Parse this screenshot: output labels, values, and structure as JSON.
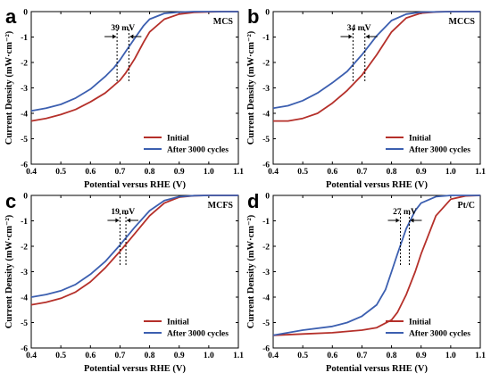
{
  "legend": {
    "initial": "Initial",
    "after": "After 3000 cycles"
  },
  "colors": {
    "initial": "#b5302a",
    "after": "#3c5fb0"
  },
  "chart_data": [
    {
      "type": "line",
      "panel": "a",
      "label": "MCS",
      "xlabel": "Potential versus RHE (V)",
      "ylabel": "Current Density (mW·cm⁻²)",
      "xlim": [
        0.4,
        1.1
      ],
      "ylim": [
        -6,
        0
      ],
      "xticks": [
        "0.4",
        "0.5",
        "0.6",
        "0.7",
        "0.8",
        "0.9",
        "1.0",
        "1.1"
      ],
      "yticks": [
        "0",
        "-1",
        "-2",
        "-3",
        "-4",
        "-5",
        "-6"
      ],
      "annotation": {
        "text": "39 mV",
        "x1": 0.69,
        "x2": 0.73
      },
      "series": [
        {
          "name": "Initial",
          "x": [
            0.4,
            0.45,
            0.5,
            0.55,
            0.6,
            0.65,
            0.7,
            0.72,
            0.75,
            0.78,
            0.8,
            0.85,
            0.9,
            0.95,
            1.0,
            1.05,
            1.1
          ],
          "y": [
            -4.3,
            -4.2,
            -4.05,
            -3.85,
            -3.55,
            -3.2,
            -2.7,
            -2.4,
            -1.85,
            -1.2,
            -0.8,
            -0.3,
            -0.1,
            -0.03,
            -0.01,
            0,
            0
          ]
        },
        {
          "name": "After 3000 cycles",
          "x": [
            0.4,
            0.45,
            0.5,
            0.55,
            0.6,
            0.65,
            0.68,
            0.7,
            0.72,
            0.75,
            0.78,
            0.8,
            0.85,
            0.9,
            0.95,
            1.0,
            1.1
          ],
          "y": [
            -3.9,
            -3.8,
            -3.65,
            -3.4,
            -3.05,
            -2.55,
            -2.2,
            -1.9,
            -1.55,
            -1.05,
            -0.55,
            -0.3,
            -0.07,
            -0.02,
            0,
            0,
            0
          ]
        }
      ]
    },
    {
      "type": "line",
      "panel": "b",
      "label": "MCCS",
      "xlabel": "Potential versus RHE (V)",
      "ylabel": "Current Density (mW·cm⁻²)",
      "xlim": [
        0.4,
        1.1
      ],
      "ylim": [
        -6,
        0
      ],
      "xticks": [
        "0.4",
        "0.5",
        "0.6",
        "0.7",
        "0.8",
        "0.9",
        "1.0",
        "1.1"
      ],
      "yticks": [
        "0",
        "-1",
        "-2",
        "-3",
        "-4",
        "-5",
        "-6"
      ],
      "annotation": {
        "text": "34 mV",
        "x1": 0.67,
        "x2": 0.71
      },
      "series": [
        {
          "name": "Initial",
          "x": [
            0.4,
            0.45,
            0.5,
            0.55,
            0.6,
            0.65,
            0.7,
            0.75,
            0.8,
            0.85,
            0.9,
            0.95,
            1.0,
            1.1
          ],
          "y": [
            -4.3,
            -4.3,
            -4.2,
            -4.0,
            -3.6,
            -3.1,
            -2.5,
            -1.7,
            -0.8,
            -0.25,
            -0.06,
            -0.01,
            0,
            0
          ]
        },
        {
          "name": "After 3000 cycles",
          "x": [
            0.4,
            0.45,
            0.5,
            0.55,
            0.6,
            0.65,
            0.7,
            0.75,
            0.8,
            0.85,
            0.9,
            1.0,
            1.1
          ],
          "y": [
            -3.8,
            -3.7,
            -3.5,
            -3.2,
            -2.8,
            -2.35,
            -1.7,
            -0.95,
            -0.35,
            -0.1,
            -0.02,
            0,
            0
          ]
        }
      ]
    },
    {
      "type": "line",
      "panel": "c",
      "label": "MCFS",
      "xlabel": "Potential versus RHE (V)",
      "ylabel": "Current Density (mW·cm⁻²)",
      "xlim": [
        0.4,
        1.1
      ],
      "ylim": [
        -6,
        0
      ],
      "xticks": [
        "0.4",
        "0.5",
        "0.6",
        "0.7",
        "0.8",
        "0.9",
        "1.0",
        "1.1"
      ],
      "yticks": [
        "0",
        "-1",
        "-2",
        "-3",
        "-4",
        "-5",
        "-6"
      ],
      "annotation": {
        "text": "19 mV",
        "x1": 0.7,
        "x2": 0.72
      },
      "series": [
        {
          "name": "Initial",
          "x": [
            0.4,
            0.45,
            0.5,
            0.55,
            0.6,
            0.65,
            0.7,
            0.75,
            0.8,
            0.85,
            0.9,
            0.95,
            1.0,
            1.1
          ],
          "y": [
            -4.3,
            -4.2,
            -4.05,
            -3.8,
            -3.4,
            -2.85,
            -2.2,
            -1.5,
            -0.8,
            -0.3,
            -0.07,
            -0.01,
            0,
            0
          ]
        },
        {
          "name": "After 3000 cycles",
          "x": [
            0.4,
            0.45,
            0.5,
            0.55,
            0.6,
            0.65,
            0.7,
            0.75,
            0.8,
            0.85,
            0.9,
            0.95,
            1.0,
            1.1
          ],
          "y": [
            -4.0,
            -3.9,
            -3.75,
            -3.5,
            -3.1,
            -2.6,
            -1.95,
            -1.25,
            -0.6,
            -0.2,
            -0.05,
            -0.01,
            0,
            0
          ]
        }
      ]
    },
    {
      "type": "line",
      "panel": "d",
      "label": "Pt/C",
      "xlabel": "Potential versus RHE (V)",
      "ylabel": "Current Density (mW·cm⁻²)",
      "xlim": [
        0.4,
        1.1
      ],
      "ylim": [
        -6,
        0
      ],
      "xticks": [
        "0.4",
        "0.5",
        "0.6",
        "0.7",
        "0.8",
        "0.9",
        "1.0",
        "1.1"
      ],
      "yticks": [
        "0",
        "-1",
        "-2",
        "-3",
        "-4",
        "-5",
        "-6"
      ],
      "annotation": {
        "text": "27 mV",
        "x1": 0.83,
        "x2": 0.86
      },
      "series": [
        {
          "name": "Initial",
          "x": [
            0.4,
            0.5,
            0.6,
            0.7,
            0.75,
            0.8,
            0.82,
            0.85,
            0.88,
            0.9,
            0.95,
            1.0,
            1.05,
            1.1
          ],
          "y": [
            -5.5,
            -5.45,
            -5.4,
            -5.3,
            -5.2,
            -4.9,
            -4.6,
            -3.9,
            -3.0,
            -2.3,
            -0.8,
            -0.15,
            -0.02,
            0
          ]
        },
        {
          "name": "After 3000 cycles",
          "x": [
            0.4,
            0.5,
            0.6,
            0.65,
            0.7,
            0.75,
            0.78,
            0.8,
            0.82,
            0.85,
            0.88,
            0.9,
            0.95,
            1.0,
            1.1
          ],
          "y": [
            -5.5,
            -5.3,
            -5.15,
            -5.0,
            -4.75,
            -4.3,
            -3.7,
            -3.0,
            -2.3,
            -1.3,
            -0.6,
            -0.3,
            -0.05,
            0,
            0
          ]
        }
      ]
    }
  ]
}
